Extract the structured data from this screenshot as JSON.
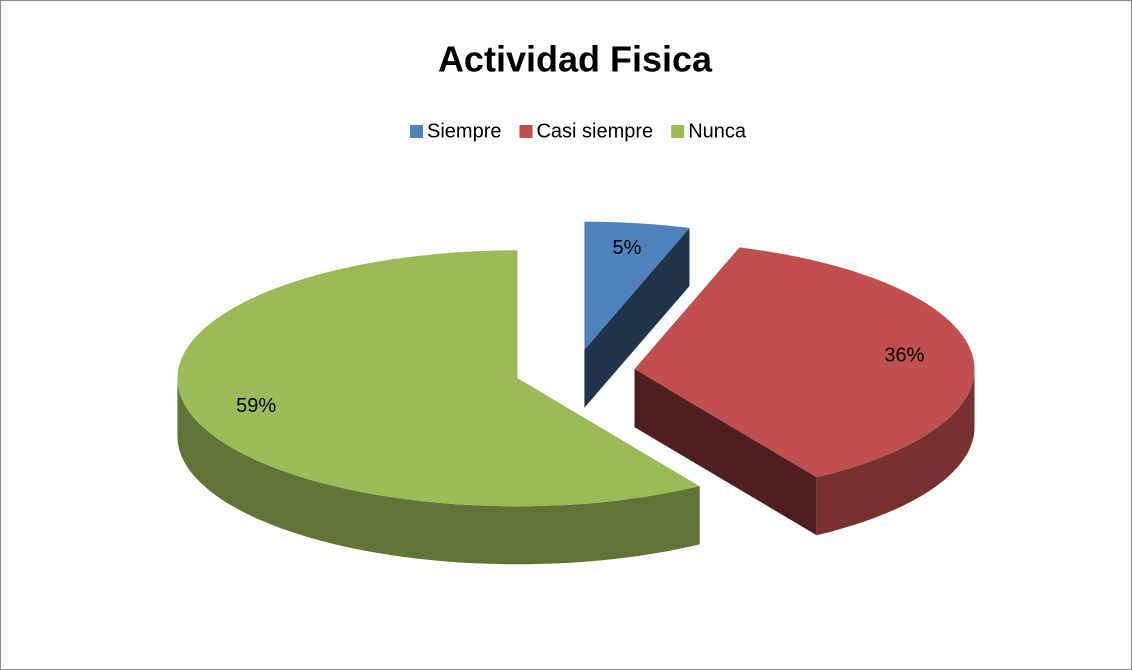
{
  "chart_data": {
    "type": "pie3d",
    "title": "Actividad Fisica",
    "categories": [
      "Siempre",
      "Casi siempre",
      "Nunca"
    ],
    "values": [
      5,
      36,
      59
    ],
    "value_labels": [
      "5%",
      "36%",
      "59%"
    ],
    "colors": [
      "#4f81bd",
      "#c0504d",
      "#9bbb59"
    ],
    "legend": "top"
  }
}
